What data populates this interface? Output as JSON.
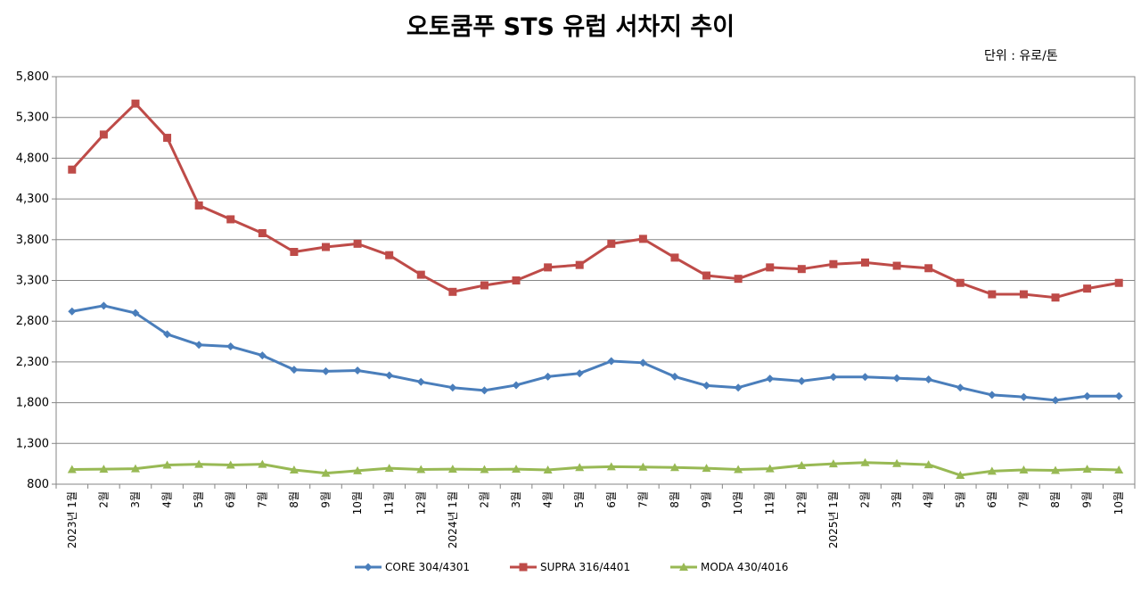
{
  "chart_data": {
    "type": "line",
    "title": "오토쿰푸 STS 유럽 서차지 추이",
    "unit": "단위 : 유로/톤",
    "ylim": [
      800,
      5800
    ],
    "yticks": [
      "5,800",
      "5,300",
      "4,800",
      "4,300",
      "3,800",
      "3,300",
      "2,800",
      "2,300",
      "1,800",
      "1,300",
      "800"
    ],
    "ytick_values": [
      5800,
      5300,
      4800,
      4300,
      3800,
      3300,
      2800,
      2300,
      1800,
      1300,
      800
    ],
    "categories": [
      "2023년 1월",
      "2월",
      "3월",
      "4월",
      "5월",
      "6월",
      "7월",
      "8월",
      "9월",
      "10월",
      "11월",
      "12월",
      "2024년 1월",
      "2월",
      "3월",
      "4월",
      "5월",
      "6월",
      "7월",
      "8월",
      "9월",
      "10월",
      "11월",
      "12월",
      "2025년 1월",
      "2월",
      "3월",
      "4월",
      "5월",
      "6월",
      "7월",
      "8월",
      "9월",
      "10월"
    ],
    "grid": true,
    "legend_position": "bottom",
    "series": [
      {
        "name": "CORE 304/4301",
        "color": "#4a7ebb",
        "marker": "diamond",
        "values": [
          2920,
          2990,
          2900,
          2640,
          2510,
          2490,
          2380,
          2205,
          2185,
          2195,
          2135,
          2055,
          1985,
          1950,
          2015,
          2120,
          2160,
          2310,
          2290,
          2120,
          2010,
          1985,
          2095,
          2065,
          2115,
          2115,
          2100,
          2085,
          1985,
          1895,
          1870,
          1830,
          1880,
          1880
        ]
      },
      {
        "name": "SUPRA 316/4401",
        "color": "#be4b48",
        "marker": "square",
        "values": [
          4660,
          5090,
          5470,
          5050,
          4220,
          4050,
          3880,
          3650,
          3710,
          3750,
          3610,
          3370,
          3160,
          3240,
          3300,
          3460,
          3490,
          3750,
          3810,
          3580,
          3360,
          3320,
          3460,
          3440,
          3500,
          3520,
          3480,
          3450,
          3270,
          3130,
          3130,
          3090,
          3200,
          3270
        ]
      },
      {
        "name": "MODA 430/4016",
        "color": "#98b954",
        "marker": "triangle",
        "values": [
          980,
          985,
          990,
          1035,
          1045,
          1035,
          1045,
          975,
          935,
          965,
          995,
          980,
          985,
          980,
          985,
          975,
          1005,
          1015,
          1010,
          1005,
          995,
          980,
          990,
          1030,
          1050,
          1065,
          1055,
          1040,
          910,
          960,
          975,
          970,
          985,
          975
        ]
      }
    ]
  }
}
